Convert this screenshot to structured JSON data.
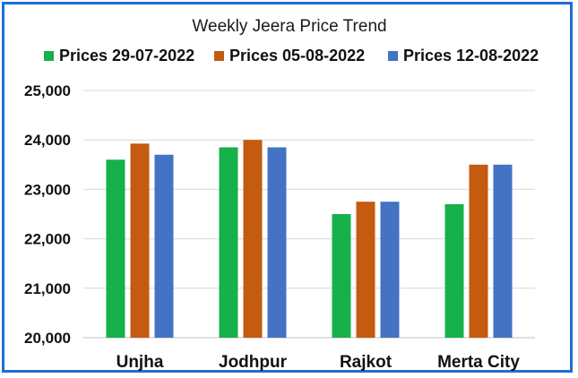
{
  "colors": {
    "frame": "#1f6fd1",
    "series": [
      "#16b14b",
      "#c55a11",
      "#4472c4"
    ]
  },
  "chart_data": {
    "type": "bar",
    "title": "Weekly Jeera Price Trend",
    "categories": [
      "Unjha",
      "Jodhpur",
      "Rajkot",
      "Merta City"
    ],
    "series": [
      {
        "name": "Prices 29-07-2022",
        "values": [
          23600,
          23850,
          22500,
          22700
        ]
      },
      {
        "name": "Prices 05-08-2022",
        "values": [
          23925,
          24000,
          22750,
          23500
        ]
      },
      {
        "name": "Prices 12-08-2022",
        "values": [
          23700,
          23850,
          22750,
          23500
        ]
      }
    ],
    "ylim": [
      20000,
      25000
    ],
    "yticks": [
      "20,000",
      "21,000",
      "22,000",
      "23,000",
      "24,000",
      "25,000"
    ],
    "grid": true,
    "legend_position": "top"
  }
}
